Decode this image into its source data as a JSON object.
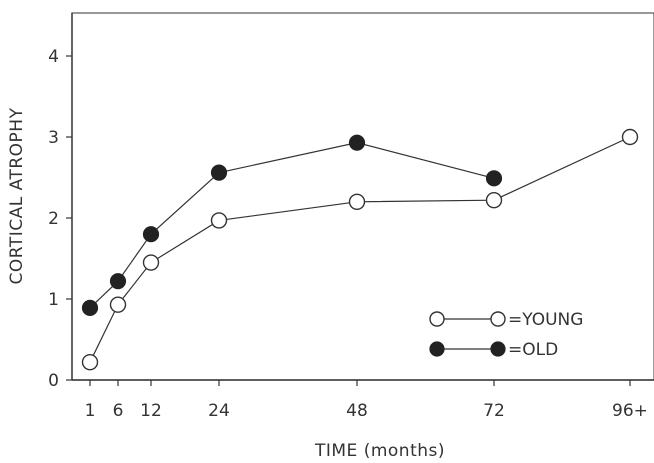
{
  "chart_data": {
    "type": "line",
    "title": "",
    "xlabel": "TIME (months)",
    "ylabel": "CORTICAL ATROPHY",
    "categories": [
      "1",
      "6",
      "12",
      "24",
      "48",
      "72",
      "96+"
    ],
    "ylim": [
      0,
      4.5
    ],
    "yticks": [
      "0",
      "1",
      "2",
      "3",
      "4"
    ],
    "grid": false,
    "legend_position": "bottom-right",
    "series": [
      {
        "name": "=YOUNG",
        "marker": "open-circle",
        "values": [
          0.22,
          0.93,
          1.45,
          1.97,
          2.2,
          2.22,
          3.0
        ]
      },
      {
        "name": "=OLD",
        "marker": "filled-circle",
        "values": [
          0.89,
          1.22,
          1.8,
          2.56,
          2.93,
          2.49,
          null
        ]
      }
    ]
  }
}
